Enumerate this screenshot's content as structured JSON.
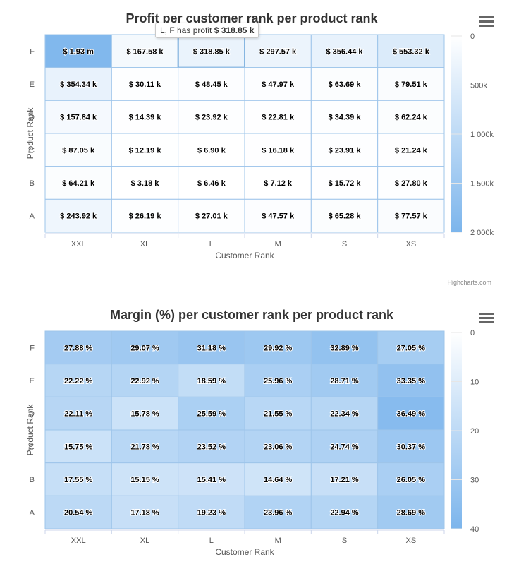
{
  "credits": "Highcharts.com",
  "tooltip": {
    "prefix": "L, F has profit",
    "value": "$ 318.85 k"
  },
  "chart_data": [
    {
      "type": "heatmap",
      "title": "Profit per customer rank per product rank",
      "xlabel": "Customer Rank",
      "ylabel": "Product Rank",
      "x": [
        "XXL",
        "XL",
        "L",
        "M",
        "S",
        "XS"
      ],
      "y": [
        "F",
        "E",
        "D",
        "C",
        "B",
        "A"
      ],
      "values": [
        [
          1930000,
          167580,
          318850,
          297570,
          356440,
          553320
        ],
        [
          354340,
          30110,
          48450,
          47970,
          63690,
          79510
        ],
        [
          157840,
          14390,
          23920,
          22810,
          34390,
          62240
        ],
        [
          87050,
          12190,
          6900,
          16180,
          23910,
          21240
        ],
        [
          64210,
          3180,
          6460,
          7120,
          15720,
          27800
        ],
        [
          243920,
          26190,
          27010,
          47570,
          65280,
          77570
        ]
      ],
      "labels": [
        [
          "$ 1.93 m",
          "$ 167.58 k",
          "$ 318.85 k",
          "$ 297.57 k",
          "$ 356.44 k",
          "$ 553.32 k"
        ],
        [
          "$ 354.34 k",
          "$ 30.11 k",
          "$ 48.45 k",
          "$ 47.97 k",
          "$ 63.69 k",
          "$ 79.51 k"
        ],
        [
          "$ 157.84 k",
          "$ 14.39 k",
          "$ 23.92 k",
          "$ 22.81 k",
          "$ 34.39 k",
          "$ 62.24 k"
        ],
        [
          "$ 87.05 k",
          "$ 12.19 k",
          "$ 6.90 k",
          "$ 16.18 k",
          "$ 23.91 k",
          "$ 21.24 k"
        ],
        [
          "$ 64.21 k",
          "$ 3.18 k",
          "$ 6.46 k",
          "$ 7.12 k",
          "$ 15.72 k",
          "$ 27.80 k"
        ],
        [
          "$ 243.92 k",
          "$ 26.19 k",
          "$ 27.01 k",
          "$ 47.57 k",
          "$ 65.28 k",
          "$ 77.57 k"
        ]
      ],
      "colorAxis": {
        "min": 0,
        "max": 2000000,
        "ticks": [
          "0",
          "500k",
          "1 000k",
          "1 500k",
          "2 000k"
        ],
        "minColor": "#ffffff",
        "maxColor": "#7cb5ec"
      },
      "hover": {
        "row": 0,
        "col": 2
      }
    },
    {
      "type": "heatmap",
      "title": "Margin (%) per customer rank per product rank",
      "xlabel": "Customer Rank",
      "ylabel": "Product Rank",
      "x": [
        "XXL",
        "XL",
        "L",
        "M",
        "S",
        "XS"
      ],
      "y": [
        "F",
        "E",
        "D",
        "C",
        "B",
        "A"
      ],
      "values": [
        [
          27.88,
          29.07,
          31.18,
          29.92,
          32.89,
          27.05
        ],
        [
          22.22,
          22.92,
          18.59,
          25.96,
          28.71,
          33.35
        ],
        [
          22.11,
          15.78,
          25.59,
          21.55,
          22.34,
          36.49
        ],
        [
          15.75,
          21.78,
          23.52,
          23.06,
          24.74,
          30.37
        ],
        [
          17.55,
          15.15,
          15.41,
          14.64,
          17.21,
          26.05
        ],
        [
          20.54,
          17.18,
          19.23,
          23.96,
          22.94,
          28.69
        ]
      ],
      "labels": [
        [
          "27.88 %",
          "29.07 %",
          "31.18 %",
          "29.92 %",
          "32.89 %",
          "27.05 %"
        ],
        [
          "22.22 %",
          "22.92 %",
          "18.59 %",
          "25.96 %",
          "28.71 %",
          "33.35 %"
        ],
        [
          "22.11 %",
          "15.78 %",
          "25.59 %",
          "21.55 %",
          "22.34 %",
          "36.49 %"
        ],
        [
          "15.75 %",
          "21.78 %",
          "23.52 %",
          "23.06 %",
          "24.74 %",
          "30.37 %"
        ],
        [
          "17.55 %",
          "15.15 %",
          "15.41 %",
          "14.64 %",
          "17.21 %",
          "26.05 %"
        ],
        [
          "20.54 %",
          "17.18 %",
          "19.23 %",
          "23.96 %",
          "22.94 %",
          "28.69 %"
        ]
      ],
      "colorAxis": {
        "min": 0,
        "max": 40,
        "ticks": [
          "0",
          "10",
          "20",
          "30",
          "40"
        ],
        "minColor": "#ffffff",
        "maxColor": "#7cb5ec"
      }
    }
  ]
}
